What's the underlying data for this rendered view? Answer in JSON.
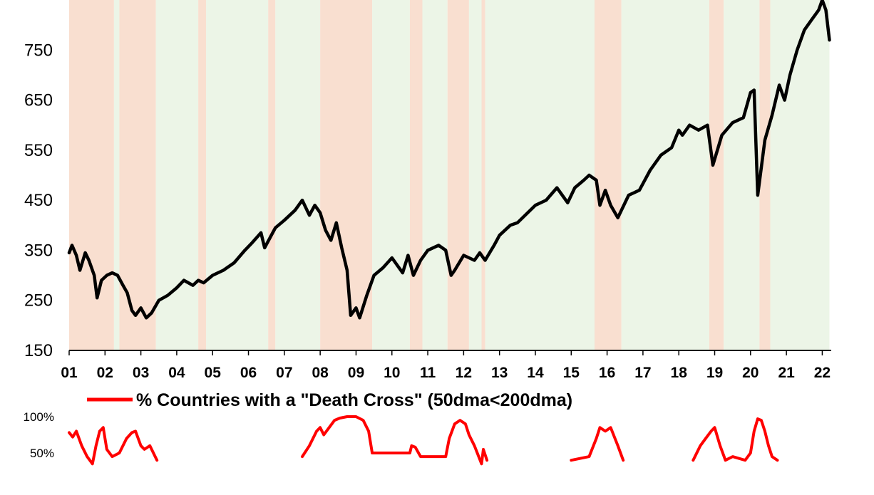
{
  "colors": {
    "bear_shade": "#f9dfd0",
    "bull_shade": "#ecf5e7",
    "index_line": "#000000",
    "death_cross_line": "#ff0000"
  },
  "chart_data": [
    {
      "type": "line",
      "title": "",
      "xlabel": "",
      "ylabel": "",
      "ylim": [
        150,
        850
      ],
      "y_ticks": [
        "150",
        "250",
        "350",
        "450",
        "550",
        "650",
        "750"
      ],
      "x_ticks": [
        "01",
        "02",
        "03",
        "04",
        "05",
        "06",
        "07",
        "08",
        "09",
        "10",
        "11",
        "12",
        "13",
        "14",
        "15",
        "16",
        "17",
        "18",
        "19",
        "20",
        "21",
        "22"
      ],
      "xlim": [
        2001.0,
        2022.25
      ],
      "regimes": [
        {
          "start": 2001.0,
          "end": 2002.25,
          "state": "bear"
        },
        {
          "start": 2002.25,
          "end": 2002.4,
          "state": "bull"
        },
        {
          "start": 2002.4,
          "end": 2003.42,
          "state": "bear"
        },
        {
          "start": 2003.42,
          "end": 2004.6,
          "state": "bull"
        },
        {
          "start": 2004.6,
          "end": 2004.82,
          "state": "bear"
        },
        {
          "start": 2004.82,
          "end": 2006.55,
          "state": "bull"
        },
        {
          "start": 2006.55,
          "end": 2006.75,
          "state": "bear"
        },
        {
          "start": 2006.75,
          "end": 2008.0,
          "state": "bull"
        },
        {
          "start": 2008.0,
          "end": 2009.45,
          "state": "bear"
        },
        {
          "start": 2009.45,
          "end": 2010.5,
          "state": "bull"
        },
        {
          "start": 2010.5,
          "end": 2010.85,
          "state": "bear"
        },
        {
          "start": 2010.85,
          "end": 2011.55,
          "state": "bull"
        },
        {
          "start": 2011.55,
          "end": 2012.15,
          "state": "bear"
        },
        {
          "start": 2012.15,
          "end": 2012.5,
          "state": "bull"
        },
        {
          "start": 2012.5,
          "end": 2012.6,
          "state": "bear"
        },
        {
          "start": 2012.6,
          "end": 2015.65,
          "state": "bull"
        },
        {
          "start": 2015.65,
          "end": 2016.4,
          "state": "bear"
        },
        {
          "start": 2016.4,
          "end": 2018.85,
          "state": "bull"
        },
        {
          "start": 2018.85,
          "end": 2019.25,
          "state": "bear"
        },
        {
          "start": 2019.25,
          "end": 2020.25,
          "state": "bull"
        },
        {
          "start": 2020.25,
          "end": 2020.55,
          "state": "bear"
        },
        {
          "start": 2020.55,
          "end": 2022.2,
          "state": "bull"
        }
      ],
      "series": [
        {
          "x": [
            2001.0,
            2001.08,
            2001.2,
            2001.3,
            2001.45,
            2001.55,
            2001.7,
            2001.78,
            2001.9,
            2002.05,
            2002.2,
            2002.35,
            2002.5,
            2002.62,
            2002.75,
            2002.85,
            2003.0,
            2003.15,
            2003.3,
            2003.5,
            2003.75,
            2004.0,
            2004.2,
            2004.45,
            2004.6,
            2004.75,
            2005.0,
            2005.3,
            2005.6,
            2005.9,
            2006.1,
            2006.35,
            2006.45,
            2006.6,
            2006.75,
            2007.0,
            2007.3,
            2007.5,
            2007.7,
            2007.85,
            2008.0,
            2008.15,
            2008.3,
            2008.45,
            2008.6,
            2008.75,
            2008.85,
            2009.0,
            2009.1,
            2009.3,
            2009.5,
            2009.75,
            2010.0,
            2010.3,
            2010.45,
            2010.6,
            2010.8,
            2011.0,
            2011.3,
            2011.5,
            2011.65,
            2011.75,
            2012.0,
            2012.3,
            2012.45,
            2012.6,
            2012.85,
            2013.0,
            2013.3,
            2013.5,
            2014.0,
            2014.3,
            2014.6,
            2014.9,
            2015.1,
            2015.35,
            2015.5,
            2015.7,
            2015.8,
            2015.95,
            2016.1,
            2016.3,
            2016.6,
            2016.9,
            2017.2,
            2017.5,
            2017.8,
            2018.0,
            2018.1,
            2018.3,
            2018.55,
            2018.8,
            2018.95,
            2019.2,
            2019.5,
            2019.8,
            2020.0,
            2020.1,
            2020.2,
            2020.4,
            2020.6,
            2020.8,
            2020.95,
            2021.1,
            2021.3,
            2021.5,
            2021.7,
            2021.9,
            2022.0,
            2022.1,
            2022.2
          ],
          "values": [
            345,
            360,
            340,
            310,
            345,
            330,
            300,
            255,
            290,
            300,
            305,
            300,
            280,
            265,
            230,
            220,
            235,
            215,
            225,
            250,
            260,
            275,
            290,
            280,
            290,
            285,
            300,
            310,
            325,
            350,
            365,
            385,
            355,
            375,
            395,
            410,
            430,
            450,
            420,
            440,
            425,
            390,
            370,
            405,
            355,
            310,
            220,
            235,
            215,
            260,
            300,
            315,
            335,
            305,
            340,
            300,
            330,
            350,
            360,
            350,
            300,
            310,
            340,
            330,
            345,
            330,
            360,
            380,
            400,
            405,
            440,
            450,
            475,
            445,
            475,
            490,
            500,
            490,
            440,
            470,
            440,
            415,
            460,
            470,
            510,
            540,
            555,
            590,
            580,
            600,
            590,
            600,
            520,
            580,
            605,
            615,
            665,
            670,
            460,
            570,
            620,
            680,
            650,
            700,
            750,
            790,
            810,
            830,
            850,
            830,
            770
          ]
        }
      ]
    },
    {
      "type": "line",
      "title": "",
      "xlabel": "",
      "ylabel": "",
      "ylim": [
        0,
        100
      ],
      "y_ticks": [
        "50%",
        "100%"
      ],
      "xlim": [
        2001.0,
        2022.25
      ],
      "series": [
        {
          "name": "% Countries with a \"Death Cross\" (50dma<200dma)",
          "x": [
            2001.0,
            2001.1,
            2001.2,
            2001.35,
            2001.5,
            2001.65,
            2001.75,
            2001.85,
            2001.95,
            2002.05,
            2002.2,
            2002.4,
            2002.6,
            2002.75,
            2002.85,
            2003.0,
            2003.1,
            2003.25,
            2003.45,
            2007.5,
            2007.7,
            2007.9,
            2008.0,
            2008.1,
            2008.25,
            2008.4,
            2008.55,
            2008.75,
            2009.0,
            2009.2,
            2009.35,
            2009.45,
            2010.5,
            2010.55,
            2010.65,
            2010.8,
            2011.5,
            2011.6,
            2011.75,
            2011.9,
            2012.05,
            2012.15,
            2012.3,
            2012.5,
            2012.55,
            2012.65,
            2015.0,
            2015.5,
            2015.7,
            2015.8,
            2015.95,
            2016.1,
            2016.3,
            2016.45,
            2018.4,
            2018.6,
            2018.75,
            2018.9,
            2019.0,
            2019.15,
            2019.3,
            2019.5,
            2019.85,
            2020.0,
            2020.1,
            2020.2,
            2020.3,
            2020.4,
            2020.5,
            2020.6,
            2020.75
          ],
          "values": [
            78,
            72,
            80,
            60,
            45,
            35,
            60,
            80,
            85,
            55,
            45,
            50,
            70,
            78,
            80,
            60,
            55,
            60,
            40,
            45,
            60,
            80,
            85,
            75,
            85,
            95,
            98,
            100,
            100,
            95,
            80,
            50,
            50,
            60,
            58,
            45,
            45,
            70,
            90,
            95,
            90,
            75,
            60,
            35,
            55,
            40,
            40,
            45,
            70,
            85,
            80,
            85,
            60,
            40,
            40,
            60,
            70,
            80,
            85,
            60,
            40,
            45,
            40,
            50,
            80,
            97,
            95,
            80,
            60,
            45,
            40
          ]
        }
      ]
    }
  ]
}
